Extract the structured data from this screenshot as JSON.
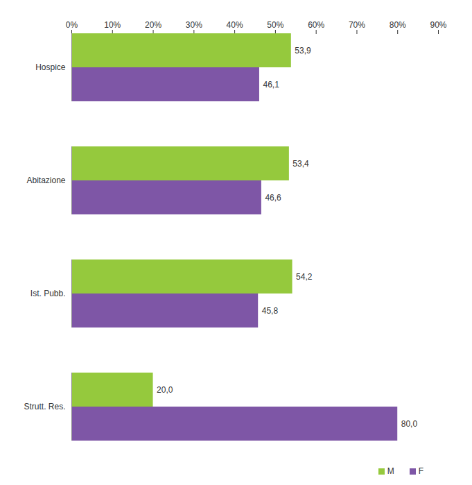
{
  "chart_data": {
    "type": "bar",
    "orientation": "horizontal",
    "categories": [
      "Hospice",
      "Abitazione",
      "Ist. Pubb.",
      "Strutt. Res."
    ],
    "series": [
      {
        "name": "M",
        "color": "#95c93d",
        "values": [
          53.9,
          53.4,
          54.2,
          20.0
        ],
        "value_labels": [
          "53,9",
          "53,4",
          "54,2",
          "20,0"
        ]
      },
      {
        "name": "F",
        "color": "#7e56a6",
        "values": [
          46.1,
          46.6,
          45.8,
          80.0
        ],
        "value_labels": [
          "46,1",
          "46,6",
          "45,8",
          "80,0"
        ]
      }
    ],
    "xlim": [
      0,
      90
    ],
    "xticks": [
      {
        "value": 0,
        "label": "0%"
      },
      {
        "value": 10,
        "label": "10%"
      },
      {
        "value": 20,
        "label": "20%"
      },
      {
        "value": 30,
        "label": "30%"
      },
      {
        "value": 40,
        "label": "40%"
      },
      {
        "value": 50,
        "label": "50%"
      },
      {
        "value": 60,
        "label": "60%"
      },
      {
        "value": 70,
        "label": "70%"
      },
      {
        "value": 80,
        "label": "80%"
      },
      {
        "value": 90,
        "label": "90%"
      }
    ],
    "grid": false,
    "data_labels": true,
    "legend": "bottom-right"
  }
}
